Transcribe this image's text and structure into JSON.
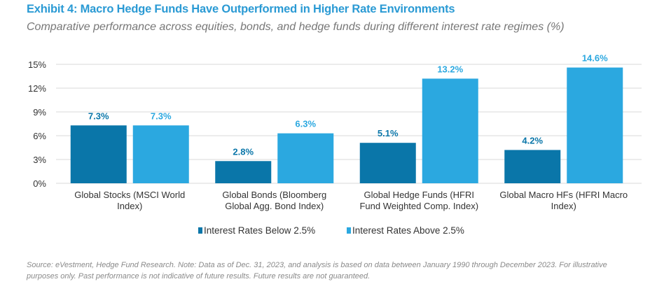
{
  "title": "Exhibit 4: Macro Hedge Funds Have Outperformed in Higher Rate Environments",
  "subtitle": "Comparative performance across equities, bonds, and hedge funds during different interest rate regimes (%)",
  "footer": {
    "line1": "Source: eVestment, Hedge Fund Research. Note: Data as of Dec. 31, 2023, and analysis is based on data between January 1990 through December 2023. For illustrative",
    "line2": "purposes only. Past performance is not indicative of future results. Future results are not guaranteed."
  },
  "chart_data": {
    "type": "bar",
    "categories": [
      [
        "Global Stocks (MSCI World",
        "Index)"
      ],
      [
        "Global Bonds (Bloomberg",
        "Global Agg. Bond Index)"
      ],
      [
        "Global Hedge Funds (HFRI",
        "Fund Weighted Comp. Index)"
      ],
      [
        "Global Macro HFs (HFRI Macro",
        "Index)"
      ]
    ],
    "series": [
      {
        "name": "Interest Rates Below 2.5%",
        "color": "#0a76a9",
        "values": [
          7.3,
          2.8,
          5.1,
          4.2
        ],
        "labels": [
          "7.3%",
          "2.8%",
          "5.1%",
          "4.2%"
        ]
      },
      {
        "name": "Interest Rates Above 2.5%",
        "color": "#2ba8e0",
        "values": [
          7.3,
          6.3,
          13.2,
          14.6
        ],
        "labels": [
          "7.3%",
          "6.3%",
          "13.2%",
          "14.6%"
        ]
      }
    ],
    "ylim": [
      0,
      15
    ],
    "yticks": [
      0,
      3,
      6,
      9,
      12,
      15
    ],
    "ytick_labels": [
      "0%",
      "3%",
      "6%",
      "9%",
      "12%",
      "15%"
    ],
    "grid": true,
    "legend": "bottom"
  }
}
